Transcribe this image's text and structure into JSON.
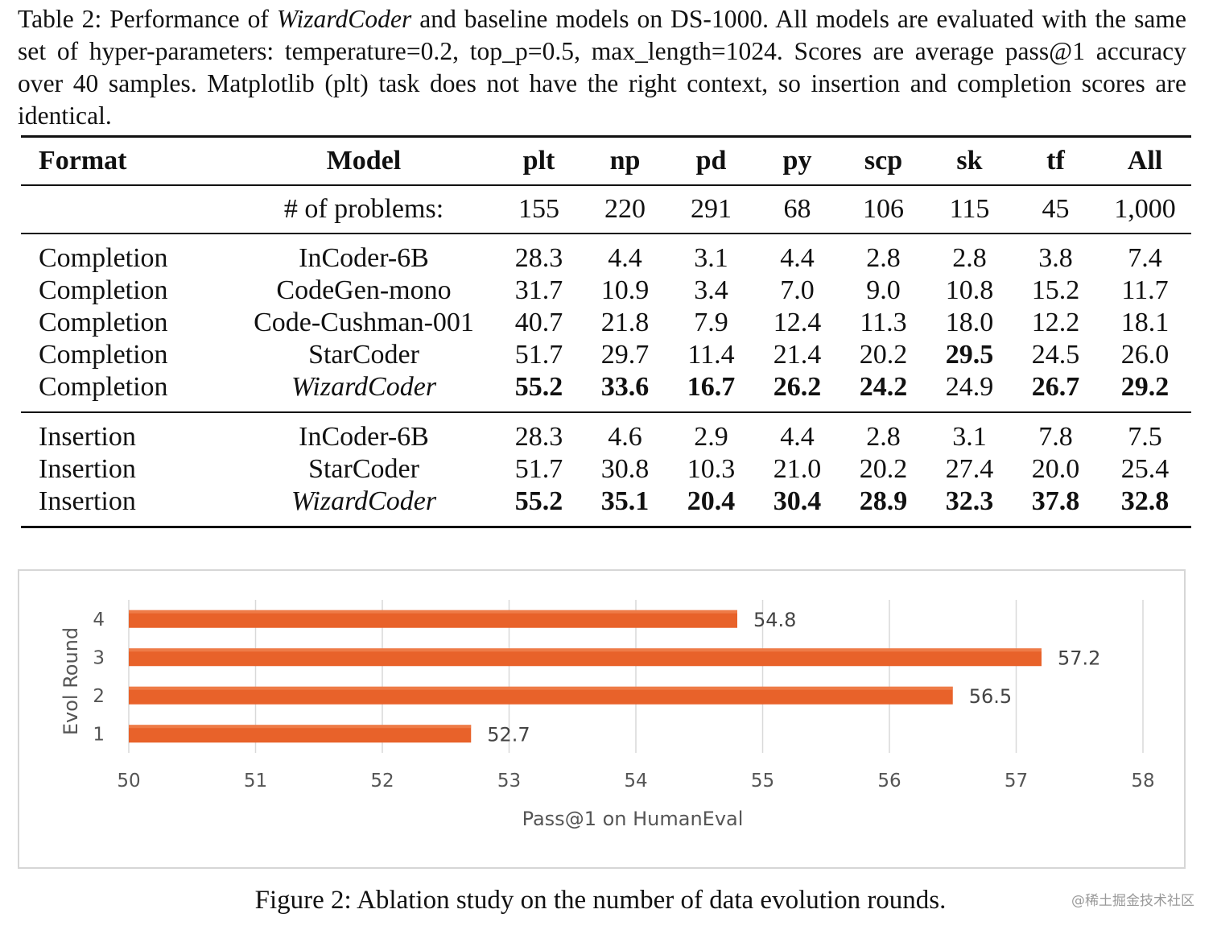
{
  "caption": {
    "label": "Table 2:",
    "pre": "Performance of",
    "model_italic": "WizardCoder",
    "post": "and baseline models on DS-1000. All models are evaluated with the same set of hyper-parameters: temperature=0.2, top_p=0.5, max_length=1024. Scores are average pass@1 accuracy over 40 samples. Matplotlib (plt) task does not have the right context, so insertion and completion scores are identical."
  },
  "table": {
    "headers": [
      "Format",
      "Model",
      "plt",
      "np",
      "pd",
      "py",
      "scp",
      "sk",
      "tf",
      "All"
    ],
    "problems_label": "# of problems:",
    "problems": [
      "155",
      "220",
      "291",
      "68",
      "106",
      "115",
      "45",
      "1,000"
    ],
    "groups": [
      {
        "rows": [
          {
            "format": "Completion",
            "model": "InCoder-6B",
            "italic": false,
            "values": [
              "28.3",
              "4.4",
              "3.1",
              "4.4",
              "2.8",
              "2.8",
              "3.8",
              "7.4"
            ],
            "bold": []
          },
          {
            "format": "Completion",
            "model": "CodeGen-mono",
            "italic": false,
            "values": [
              "31.7",
              "10.9",
              "3.4",
              "7.0",
              "9.0",
              "10.8",
              "15.2",
              "11.7"
            ],
            "bold": []
          },
          {
            "format": "Completion",
            "model": "Code-Cushman-001",
            "italic": false,
            "values": [
              "40.7",
              "21.8",
              "7.9",
              "12.4",
              "11.3",
              "18.0",
              "12.2",
              "18.1"
            ],
            "bold": []
          },
          {
            "format": "Completion",
            "model": "StarCoder",
            "italic": false,
            "values": [
              "51.7",
              "29.7",
              "11.4",
              "21.4",
              "20.2",
              "29.5",
              "24.5",
              "26.0"
            ],
            "bold": [
              5
            ]
          },
          {
            "format": "Completion",
            "model": "WizardCoder",
            "italic": true,
            "values": [
              "55.2",
              "33.6",
              "16.7",
              "26.2",
              "24.2",
              "24.9",
              "26.7",
              "29.2"
            ],
            "bold": [
              0,
              1,
              2,
              3,
              4,
              6,
              7
            ]
          }
        ]
      },
      {
        "rows": [
          {
            "format": "Insertion",
            "model": "InCoder-6B",
            "italic": false,
            "values": [
              "28.3",
              "4.6",
              "2.9",
              "4.4",
              "2.8",
              "3.1",
              "7.8",
              "7.5"
            ],
            "bold": []
          },
          {
            "format": "Insertion",
            "model": "StarCoder",
            "italic": false,
            "values": [
              "51.7",
              "30.8",
              "10.3",
              "21.0",
              "20.2",
              "27.4",
              "20.0",
              "25.4"
            ],
            "bold": []
          },
          {
            "format": "Insertion",
            "model": "WizardCoder",
            "italic": true,
            "values": [
              "55.2",
              "35.1",
              "20.4",
              "30.4",
              "28.9",
              "32.3",
              "37.8",
              "32.8"
            ],
            "bold": [
              0,
              1,
              2,
              3,
              4,
              5,
              6,
              7
            ]
          }
        ]
      }
    ]
  },
  "chart_data": {
    "type": "bar",
    "orientation": "horizontal",
    "categories": [
      "1",
      "2",
      "3",
      "4"
    ],
    "values": [
      52.7,
      56.5,
      57.2,
      54.8
    ],
    "data_labels": [
      "52.7",
      "56.5",
      "57.2",
      "54.8"
    ],
    "xlabel": "Pass@1 on HumanEval",
    "ylabel": "Evol Round",
    "xlim": [
      50,
      58
    ],
    "xticks": [
      "50",
      "51",
      "52",
      "53",
      "54",
      "55",
      "56",
      "57",
      "58"
    ],
    "grid": "vertical",
    "bar_color": "#e8622a"
  },
  "figure_caption": "Figure 2: Ablation study on the number of data evolution rounds.",
  "watermark": "@稀土掘金技术社区"
}
